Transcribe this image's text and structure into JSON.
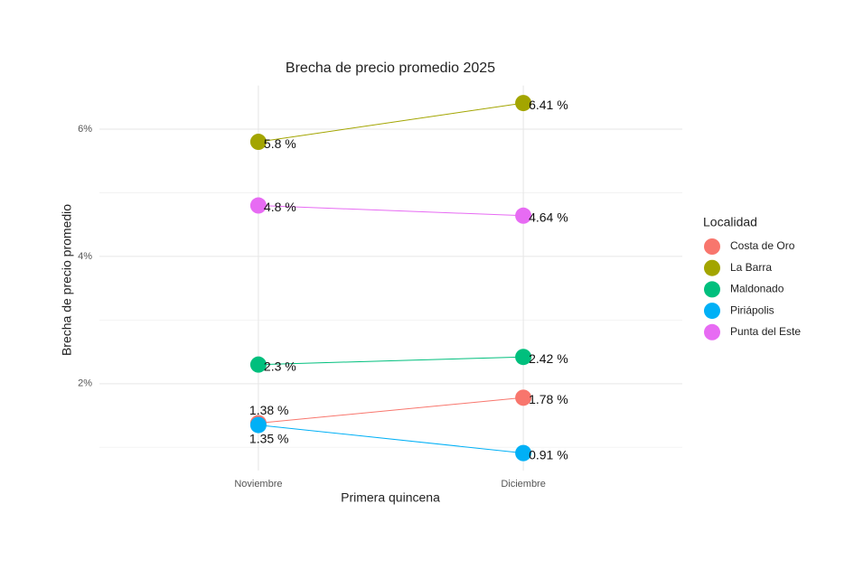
{
  "chart_data": {
    "type": "line",
    "title": "Brecha de precio promedio 2025",
    "x_label": "Primera quincena",
    "y_label": "Brecha de precio promedio",
    "legend_title": "Localidad",
    "legend_position": "right",
    "grid": true,
    "categories": [
      "Noviembre",
      "Diciembre"
    ],
    "ylim": [
      0.635,
      6.685
    ],
    "yticks": [
      {
        "value": 2,
        "label": "2%"
      },
      {
        "value": 4,
        "label": "4%"
      },
      {
        "value": 6,
        "label": "6%"
      }
    ],
    "minor_yticks": [
      1,
      3,
      5
    ],
    "series": [
      {
        "name": "Costa de Oro",
        "color": "#F8766D",
        "values": [
          1.38,
          1.78
        ],
        "value_labels": [
          "1.38 %",
          "1.78 %"
        ]
      },
      {
        "name": "La Barra",
        "color": "#A3A500",
        "values": [
          5.8,
          6.41
        ],
        "value_labels": [
          "5.8 %",
          "6.41 %"
        ]
      },
      {
        "name": "Maldonado",
        "color": "#00BF7D",
        "values": [
          2.3,
          2.42
        ],
        "value_labels": [
          "2.3 %",
          "2.42 %"
        ]
      },
      {
        "name": "Piriápolis",
        "color": "#00B0F6",
        "values": [
          1.35,
          0.91
        ],
        "value_labels": [
          "1.35 %",
          "0.91 %"
        ]
      },
      {
        "name": "Punta del Este",
        "color": "#E76BF3",
        "values": [
          4.8,
          4.64
        ],
        "value_labels": [
          "4.8 %",
          "4.64 %"
        ]
      }
    ]
  }
}
